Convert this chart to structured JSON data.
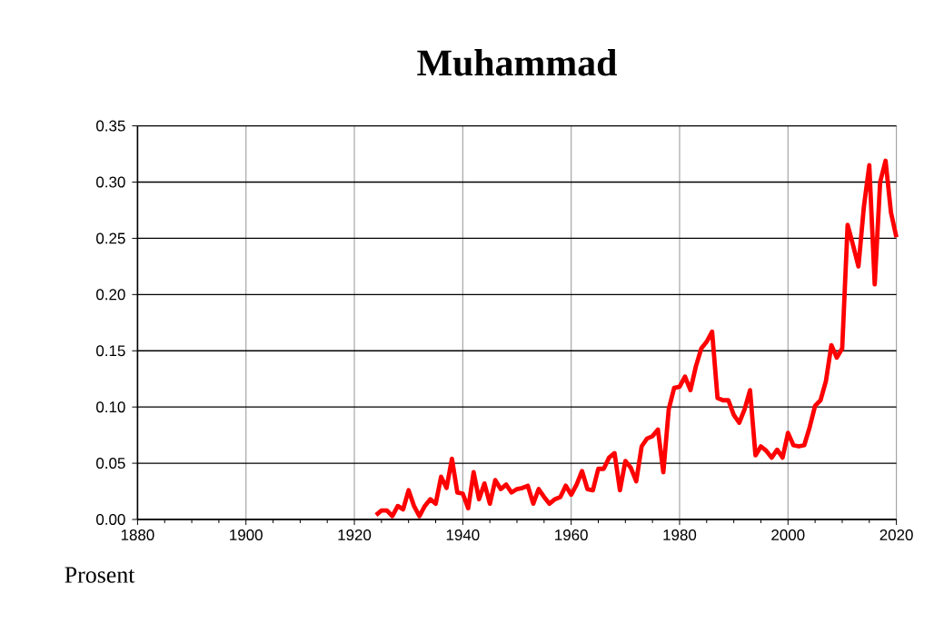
{
  "chart_data": {
    "type": "line",
    "title": "Muhammad",
    "ylabel": "Prosent",
    "color": "#ff0000",
    "grid": true,
    "xlim": [
      1880,
      2020
    ],
    "ylim": [
      0,
      0.35
    ],
    "xticks": [
      1880,
      {
        "value": 1885,
        "label": null
      },
      {
        "value": 1890,
        "label": null
      },
      {
        "value": 1895,
        "label": null
      },
      1900,
      {
        "value": 1905,
        "label": null
      },
      {
        "value": 1910,
        "label": null
      },
      {
        "value": 1915,
        "label": null
      },
      1920,
      {
        "value": 1925,
        "label": null
      },
      {
        "value": 1930,
        "label": null
      },
      {
        "value": 1935,
        "label": null
      },
      1940,
      {
        "value": 1945,
        "label": null
      },
      {
        "value": 1950,
        "label": null
      },
      {
        "value": 1955,
        "label": null
      },
      1960,
      {
        "value": 1965,
        "label": null
      },
      {
        "value": 1970,
        "label": null
      },
      {
        "value": 1975,
        "label": null
      },
      1980,
      {
        "value": 1985,
        "label": null
      },
      {
        "value": 1990,
        "label": null
      },
      {
        "value": 1995,
        "label": null
      },
      2000,
      {
        "value": 2005,
        "label": null
      },
      {
        "value": 2010,
        "label": null
      },
      {
        "value": 2015,
        "label": null
      },
      2020
    ],
    "yticks": [
      {
        "value": 0,
        "label": "0.00"
      },
      0.05,
      {
        "value": 0.1,
        "label": "0.10"
      },
      0.15,
      {
        "value": 0.2,
        "label": "0.20"
      },
      0.25,
      {
        "value": 0.3,
        "label": "0.30"
      },
      0.35
    ],
    "x": [
      1924,
      1925,
      1926,
      1927,
      1928,
      1929,
      1930,
      1931,
      1932,
      1933,
      1934,
      1935,
      1936,
      1937,
      1938,
      1939,
      1940,
      1941,
      1942,
      1943,
      1944,
      1945,
      1946,
      1947,
      1948,
      1949,
      1950,
      1951,
      1952,
      1953,
      1954,
      1955,
      1956,
      1957,
      1958,
      1959,
      1960,
      1961,
      1962,
      1963,
      1964,
      1965,
      1966,
      1967,
      1968,
      1969,
      1970,
      1971,
      1972,
      1973,
      1974,
      1975,
      1976,
      1977,
      1978,
      1979,
      1980,
      1981,
      1982,
      1983,
      1984,
      1985,
      1986,
      1987,
      1988,
      1989,
      1990,
      1991,
      1992,
      1993,
      1994,
      1995,
      1996,
      1997,
      1998,
      1999,
      2000,
      2001,
      2002,
      2003,
      2004,
      2005,
      2006,
      2007,
      2008,
      2009,
      2010,
      2011,
      2012,
      2013,
      2014,
      2015,
      2016,
      2017,
      2018,
      2019,
      2020
    ],
    "values": [
      0.004,
      0.008,
      0.008,
      0.003,
      0.012,
      0.009,
      0.026,
      0.012,
      0.003,
      0.012,
      0.018,
      0.014,
      0.038,
      0.028,
      0.054,
      0.024,
      0.023,
      0.01,
      0.042,
      0.018,
      0.032,
      0.014,
      0.035,
      0.027,
      0.031,
      0.024,
      0.027,
      0.028,
      0.03,
      0.014,
      0.027,
      0.02,
      0.014,
      0.018,
      0.02,
      0.03,
      0.022,
      0.031,
      0.043,
      0.027,
      0.026,
      0.045,
      0.045,
      0.055,
      0.059,
      0.026,
      0.052,
      0.046,
      0.034,
      0.065,
      0.072,
      0.074,
      0.08,
      0.042,
      0.098,
      0.117,
      0.118,
      0.127,
      0.115,
      0.136,
      0.152,
      0.158,
      0.167,
      0.108,
      0.106,
      0.106,
      0.093,
      0.086,
      0.098,
      0.115,
      0.057,
      0.065,
      0.061,
      0.055,
      0.062,
      0.055,
      0.077,
      0.066,
      0.065,
      0.066,
      0.082,
      0.101,
      0.106,
      0.123,
      0.155,
      0.144,
      0.152,
      0.262,
      0.244,
      0.225,
      0.278,
      0.315,
      0.209,
      0.3,
      0.319,
      0.273,
      0.251
    ]
  }
}
